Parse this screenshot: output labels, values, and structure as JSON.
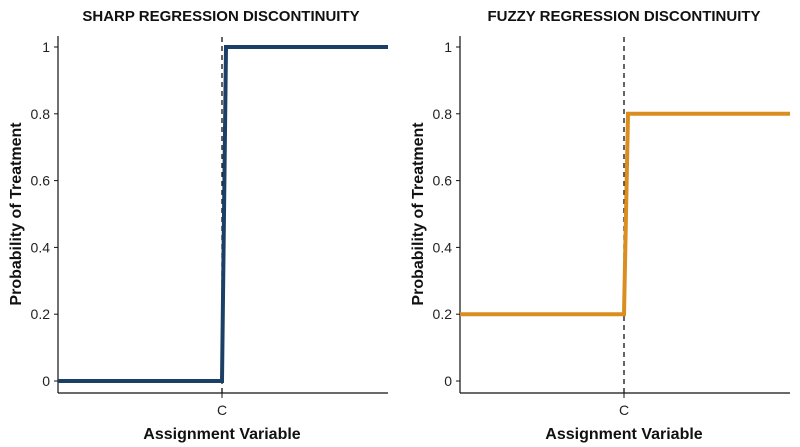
{
  "chart_data": [
    {
      "type": "line",
      "title": "SHARP REGRESSION DISCONTINUITY",
      "xlabel": "Assignment Variable",
      "ylabel": "Probability of Treatment",
      "x_ticks": [
        "C"
      ],
      "cutoff": "C",
      "ylim": [
        0,
        1
      ],
      "y_ticks": [
        "0",
        "0.2",
        "0.4",
        "0.6",
        "0.8",
        "1"
      ],
      "y_tick_values": [
        0,
        0.2,
        0.4,
        0.6,
        0.8,
        1
      ],
      "series": [
        {
          "color": "#1c3f66",
          "below_cutoff": 0,
          "above_cutoff": 1
        }
      ],
      "grid": false
    },
    {
      "type": "line",
      "title": "FUZZY REGRESSION DISCONTINUITY",
      "xlabel": "Assignment Variable",
      "ylabel": "Probability of Treatment",
      "x_ticks": [
        "C"
      ],
      "cutoff": "C",
      "ylim": [
        0,
        1
      ],
      "y_ticks": [
        "0",
        "0.2",
        "0.4",
        "0.6",
        "0.8",
        "1"
      ],
      "y_tick_values": [
        0,
        0.2,
        0.4,
        0.6,
        0.8,
        1
      ],
      "series": [
        {
          "color": "#d98e1f",
          "below_cutoff": 0.2,
          "above_cutoff": 0.8
        }
      ],
      "grid": false
    }
  ]
}
